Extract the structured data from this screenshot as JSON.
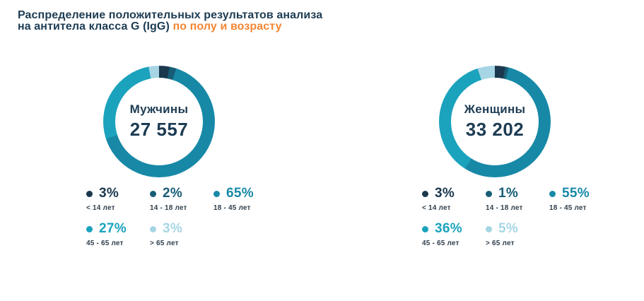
{
  "header": {
    "title_line1": "Распределение положительных результатов анализа",
    "title_line2": "на антитела класса G (IgG)",
    "title_highlight": "по полу и возрасту",
    "title_color": "#1d3c53",
    "highlight_color": "#f58634"
  },
  "palette": {
    "navy": "#1a384e",
    "dark_teal": "#175d75",
    "teal": "#1789a7",
    "medium_teal": "#1ba3bd",
    "light_blue": "#a6d6e5"
  },
  "charts": [
    {
      "name": "Мужчины",
      "total": "27 557",
      "segments": [
        {
          "label": "< 14 лет",
          "pct": "3%",
          "value": 3,
          "color": "#1a384e"
        },
        {
          "label": "14 - 18 лет",
          "pct": "2%",
          "value": 2,
          "color": "#175d75"
        },
        {
          "label": "18 - 45 лет",
          "pct": "65%",
          "value": 65,
          "color": "#1789a7"
        },
        {
          "label": "45 - 65 лет",
          "pct": "27%",
          "value": 27,
          "color": "#1ba3bd"
        },
        {
          "label": "> 65 лет",
          "pct": "3%",
          "value": 3,
          "color": "#a6d6e5"
        }
      ]
    },
    {
      "name": "Женщины",
      "total": "33 202",
      "segments": [
        {
          "label": "< 14 лет",
          "pct": "3%",
          "value": 3,
          "color": "#1a384e"
        },
        {
          "label": "14 - 18 лет",
          "pct": "1%",
          "value": 1,
          "color": "#175d75"
        },
        {
          "label": "18 - 45 лет",
          "pct": "55%",
          "value": 55,
          "color": "#1789a7"
        },
        {
          "label": "45 - 65 лет",
          "pct": "36%",
          "value": 36,
          "color": "#1ba3bd"
        },
        {
          "label": "> 65 лет",
          "pct": "5%",
          "value": 5,
          "color": "#a6d6e5"
        }
      ]
    }
  ],
  "chart_data": [
    {
      "type": "pie",
      "title": "Мужчины",
      "center_total": "27 557",
      "categories": [
        "< 14 лет",
        "14 - 18 лет",
        "18 - 45 лет",
        "45 - 65 лет",
        "> 65 лет"
      ],
      "values": [
        3,
        2,
        65,
        27,
        3
      ],
      "unit": "%",
      "donut": true,
      "start_angle_deg": 0,
      "direction": "clockwise",
      "legend_position": "below"
    },
    {
      "type": "pie",
      "title": "Женщины",
      "center_total": "33 202",
      "categories": [
        "< 14 лет",
        "14 - 18 лет",
        "18 - 45 лет",
        "45 - 65 лет",
        "> 65 лет"
      ],
      "values": [
        3,
        1,
        55,
        36,
        5
      ],
      "unit": "%",
      "donut": true,
      "start_angle_deg": 0,
      "direction": "clockwise",
      "legend_position": "below"
    }
  ]
}
